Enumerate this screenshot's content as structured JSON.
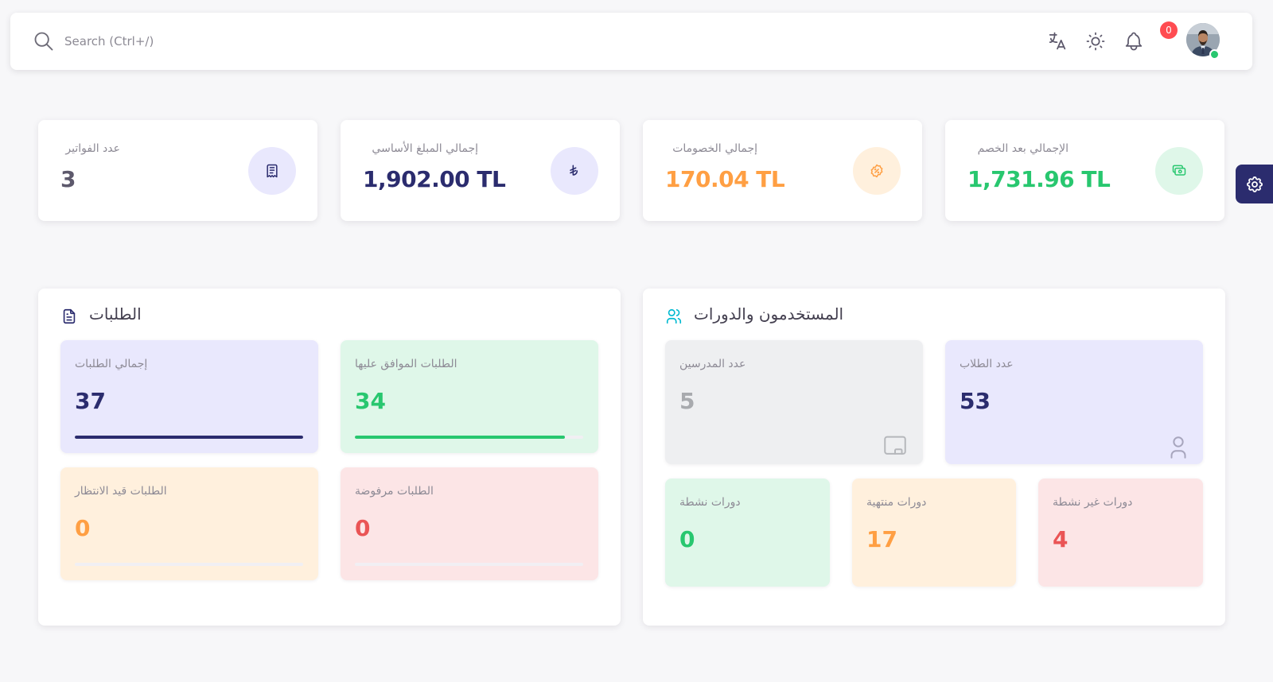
{
  "search": {
    "placeholder": "Search (Ctrl+/)"
  },
  "navbar": {
    "notification_count": "0"
  },
  "stats": [
    {
      "label": "عدد الفواتير",
      "value": "3",
      "color": "#5d596c",
      "icon": "receipt-icon",
      "icon_bg": "#e9e8fd",
      "icon_color": "#2b2c6e"
    },
    {
      "label": "إجمالي المبلغ الأساسي",
      "value": "1,902.00 TL",
      "color": "#2b2c6e",
      "icon": "lira-icon",
      "icon_bg": "#e9e8fd",
      "icon_color": "#2b2c6e"
    },
    {
      "label": "إجمالي الخصومات",
      "value": "170.04 TL",
      "color": "#ff9f43",
      "icon": "discount-icon",
      "icon_bg": "#fff0dd",
      "icon_color": "#ff9f43"
    },
    {
      "label": "الإجمالي بعد الخصم",
      "value": "1,731.96 TL",
      "color": "#28c76f",
      "icon": "cash-icon",
      "icon_bg": "#dff7e9",
      "icon_color": "#28c76f"
    }
  ],
  "requests": {
    "title": "الطلبات",
    "tiles": [
      {
        "label": "إجمالي الطلبات",
        "value": "37",
        "progress": 1.0,
        "color": "#2b2c6e",
        "bg": "#e9e8fd"
      },
      {
        "label": "الطلبات الموافق عليها",
        "value": "34",
        "progress": 0.92,
        "color": "#28c76f",
        "bg": "#dff7e9"
      },
      {
        "label": "الطلبات قيد الانتظار",
        "value": "0",
        "progress": 0.0,
        "color": "#ff9f43",
        "bg": "#fff0dd"
      },
      {
        "label": "الطلبات مرفوضة",
        "value": "0",
        "progress": 0.0,
        "color": "#ea5455",
        "bg": "#fce5e6"
      }
    ]
  },
  "users": {
    "title": "المستخدمون والدورات",
    "tiles": [
      {
        "label": "عدد المدرسين",
        "value": "5",
        "color": "#a8aaae",
        "bg": "#eeeff1",
        "icon": "chalkboard-icon"
      },
      {
        "label": "عدد الطلاب",
        "value": "53",
        "color": "#2b2c6e",
        "bg": "#e9e8fd",
        "icon": "user-icon"
      },
      {
        "label": "دورات نشطة",
        "value": "0",
        "color": "#28c76f",
        "bg": "#dff7e9"
      },
      {
        "label": "دورات منتهية",
        "value": "17",
        "color": "#ff9f43",
        "bg": "#fff0dd"
      },
      {
        "label": "دورات غير نشطة",
        "value": "4",
        "color": "#ea5455",
        "bg": "#fce5e6"
      }
    ]
  }
}
